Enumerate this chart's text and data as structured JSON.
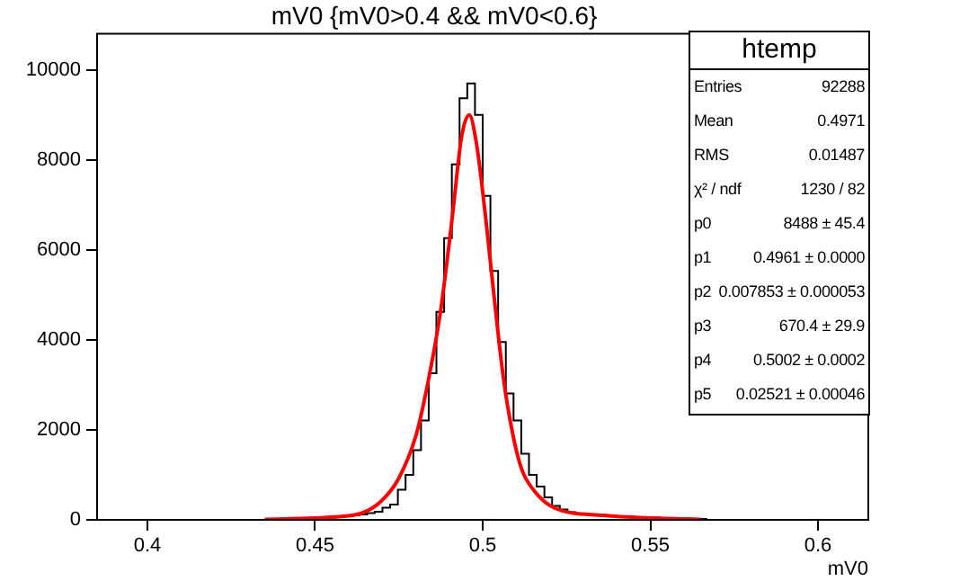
{
  "chart_data": {
    "type": "histogram",
    "title": "mV0 {mV0>0.4 && mV0<0.6}",
    "xlabel": "mV0",
    "xlim": [
      0.385,
      0.615
    ],
    "xticks": [
      0.4,
      0.45,
      0.5,
      0.55,
      0.6
    ],
    "ylim": [
      0,
      10800
    ],
    "yticks": [
      0,
      2000,
      4000,
      6000,
      8000,
      10000
    ],
    "series": [
      {
        "type": "histogram",
        "color": "#000000",
        "bins": [
          0.4402,
          0.4425,
          0.4448,
          0.4471,
          0.4494,
          0.4517,
          0.454,
          0.4563,
          0.4586,
          0.4609,
          0.4632,
          0.4655,
          0.4678,
          0.4701,
          0.4724,
          0.4747,
          0.477,
          0.4793,
          0.4816,
          0.4839,
          0.4862,
          0.4885,
          0.4908,
          0.4931,
          0.4954,
          0.4977,
          0.5,
          0.5023,
          0.5046,
          0.5069,
          0.5092,
          0.5115,
          0.5138,
          0.5161,
          0.5184,
          0.5207,
          0.523,
          0.5253,
          0.5276,
          0.5299,
          0.5322,
          0.5345,
          0.5368,
          0.5391,
          0.5414,
          0.5437,
          0.546,
          0.5483,
          0.5506,
          0.5529,
          0.5552,
          0.5575,
          0.5598,
          0.5621,
          0.5644,
          0.5667
        ],
        "values": [
          10,
          20,
          20,
          30,
          30,
          40,
          50,
          60,
          80,
          100,
          120,
          150,
          180,
          270,
          340,
          670,
          1000,
          1550,
          2210,
          3260,
          4620,
          6260,
          7900,
          9370,
          9700,
          9000,
          7200,
          5530,
          3950,
          2810,
          2210,
          1470,
          1000,
          740,
          500,
          310,
          230,
          170,
          140,
          120,
          110,
          100,
          90,
          80,
          70,
          60,
          60,
          50,
          50,
          40,
          40,
          30,
          30,
          20,
          20
        ]
      },
      {
        "type": "line",
        "color": "#ff0000",
        "x": [
          0.435,
          0.445,
          0.455,
          0.464,
          0.4695,
          0.4748,
          0.4802,
          0.4838,
          0.4874,
          0.491,
          0.4937,
          0.496,
          0.4981,
          0.5008,
          0.5035,
          0.5062,
          0.5089,
          0.5116,
          0.5152,
          0.5215,
          0.5358,
          0.5502,
          0.565
        ],
        "values": [
          10,
          30,
          60,
          150,
          400,
          900,
          1900,
          3100,
          4620,
          6770,
          8510,
          9000,
          8380,
          6770,
          4890,
          3140,
          1930,
          1130,
          660,
          260,
          100,
          40,
          10
        ]
      }
    ],
    "annotations": [
      "htemp",
      "Entries",
      "92288",
      "Mean",
      "0.4971",
      "RMS",
      "0.01487",
      "χ² / ndf",
      "1230 / 82",
      "p0",
      "8488 ± 45.4",
      "p1",
      "0.4961 ± 0.0000",
      "p2",
      "0.007853 ± 0.000053",
      "p3",
      "670.4 ± 29.9",
      "p4",
      "0.5002 ± 0.0002",
      "p5",
      "0.02521 ± 0.00046"
    ]
  }
}
